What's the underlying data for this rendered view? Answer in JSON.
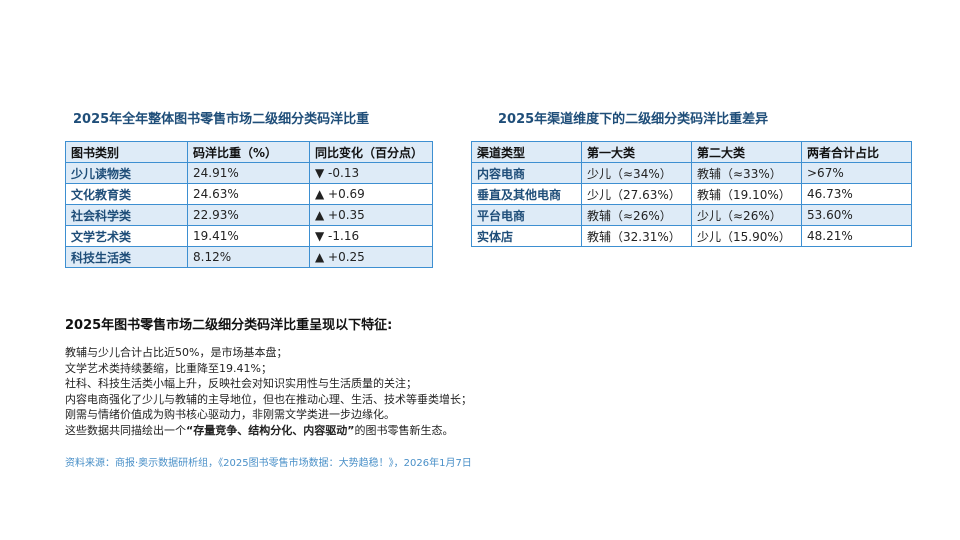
{
  "table1": {
    "title": "2025年全年整体图书零售市场二级细分类码洋比重",
    "headers": [
      "图书类别",
      "码洋比重（%）",
      "同比变化（百分点）"
    ],
    "rows": [
      [
        "少儿读物类",
        "24.91%",
        "▼ -0.13"
      ],
      [
        "文化教育类",
        "24.63%",
        "▲ +0.69"
      ],
      [
        "社会科学类",
        "22.93%",
        "▲ +0.35"
      ],
      [
        "文学艺术类",
        "19.41%",
        "▼ -1.16"
      ],
      [
        "科技生活类",
        "8.12%",
        "▲ +0.25"
      ]
    ]
  },
  "table2": {
    "title": "2025年渠道维度下的二级细分类码洋比重差异",
    "headers": [
      "渠道类型",
      "第一大类",
      "第二大类",
      "两者合计占比"
    ],
    "rows": [
      [
        "内容电商",
        "少儿（≈34%）",
        "教辅（≈33%）",
        ">67%"
      ],
      [
        "垂直及其他电商",
        "少儿（27.63%）",
        "教辅（19.10%）",
        "46.73%"
      ],
      [
        "平台电商",
        "教辅（≈26%）",
        "少儿（≈26%）",
        "53.60%"
      ],
      [
        "实体店",
        "教辅（32.31%）",
        "少儿（15.90%）",
        "48.21%"
      ]
    ]
  },
  "summary": {
    "heading": "2025年图书零售市场二级细分类码洋比重呈现以下特征:",
    "lines": [
      "教辅与少儿合计占比近50%，是市场基本盘；",
      "文学艺术类持续萎缩，比重降至19.41%；",
      "社科、科技生活类小幅上升，反映社会对知识实用性与生活质量的关注；",
      "内容电商强化了少儿与教辅的主导地位，但也在推动心理、生活、技术等垂类增长；",
      "刚需与情绪价值成为购书核心驱动力，非刚需文学类进一步边缘化。"
    ],
    "last_line_prefix": "这些数据共同描绘出一个",
    "last_line_emphasis": "“存量竞争、结构分化、内容驱动”",
    "last_line_suffix": "的图书零售新生态。"
  },
  "source": "资料来源：商报·奥示数据研析组，《2025图书零售市场数据：大势趋稳！》，2026年1月7日"
}
